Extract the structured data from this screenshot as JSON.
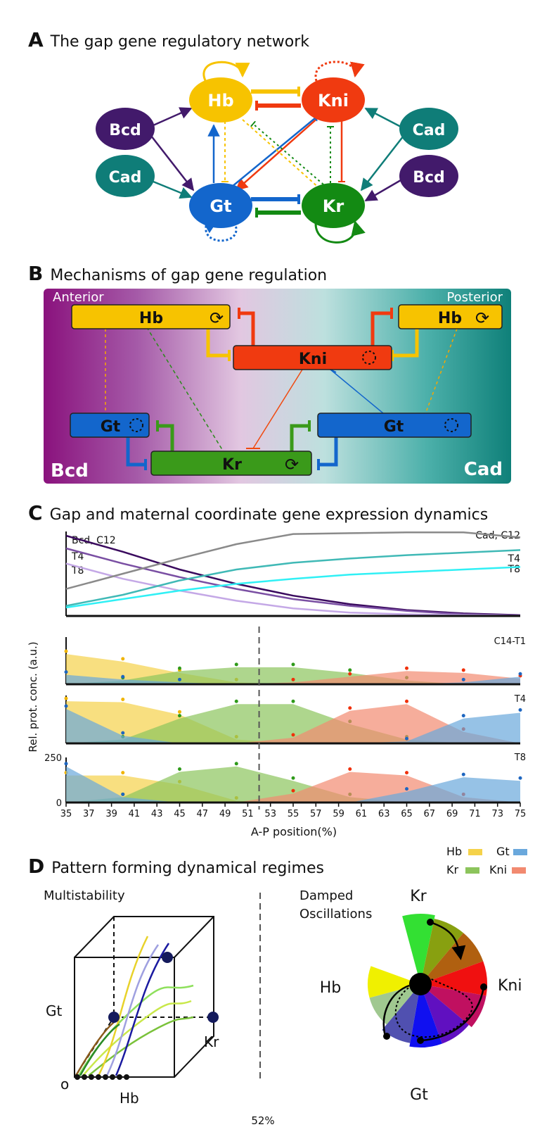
{
  "panelA": {
    "letter": "A",
    "title": "The gap gene regulatory network",
    "nodes": {
      "hb": "Hb",
      "kni": "Kni",
      "gt": "Gt",
      "kr": "Kr",
      "bcd_left": "Bcd",
      "cad_left": "Cad",
      "cad_right": "Cad",
      "bcd_right": "Bcd"
    }
  },
  "panelB": {
    "letter": "B",
    "title": "Mechanisms of gap gene regulation",
    "anterior": "Anterior",
    "posterior": "Posterior",
    "bcd": "Bcd",
    "cad": "Cad",
    "boxes": {
      "hb_left": "Hb",
      "hb_right": "Hb",
      "kni": "Kni",
      "gt_left": "Gt",
      "gt_right": "Gt",
      "kr": "Kr"
    }
  },
  "panelC": {
    "letter": "C",
    "title": "Gap and maternal coordinate gene expression dynamics",
    "ylabel": "Rel. prot. conc. (a.u.)",
    "xlabel": "A-P position(%)",
    "top_labels": {
      "bcd": "Bcd, C12",
      "t4_left": "T4",
      "t8_left": "T8",
      "cad": "Cad, C12",
      "t4_right": "T4",
      "t8_right": "T8"
    },
    "row_labels": [
      "C14-T1",
      "T4",
      "T8"
    ],
    "ytick_top": "250",
    "ytick_zero": "0",
    "marker_label": "52%",
    "legend": {
      "hb": "Hb",
      "gt": "Gt",
      "kr": "Kr",
      "kni": "Kni"
    }
  },
  "chart_data": [
    {
      "type": "line",
      "x": [
        35,
        40,
        45,
        50,
        55,
        60,
        65,
        70,
        75
      ],
      "xlim": [
        35,
        75
      ],
      "series": [
        {
          "name": "Bcd, C12",
          "color": "#3a0a5e",
          "values": [
            0.95,
            0.76,
            0.55,
            0.38,
            0.24,
            0.14,
            0.07,
            0.03,
            0.01
          ]
        },
        {
          "name": "T4",
          "color": "#7a4fa3",
          "values": [
            0.8,
            0.62,
            0.46,
            0.32,
            0.2,
            0.12,
            0.06,
            0.02,
            0.01
          ]
        },
        {
          "name": "T8",
          "color": "#c4a8e6",
          "values": [
            0.62,
            0.44,
            0.3,
            0.18,
            0.09,
            0.04,
            0.02,
            0.01,
            0.0
          ]
        },
        {
          "name": "Cad, C12",
          "color": "#8a8a8a",
          "values": [
            0.32,
            0.5,
            0.68,
            0.85,
            0.97,
            0.98,
            0.99,
            0.99,
            0.93
          ]
        },
        {
          "name": "T4",
          "color": "#40b9b6",
          "values": [
            0.12,
            0.25,
            0.42,
            0.55,
            0.63,
            0.68,
            0.72,
            0.75,
            0.78
          ]
        },
        {
          "name": "T8",
          "color": "#30f0f5",
          "values": [
            0.1,
            0.2,
            0.3,
            0.38,
            0.44,
            0.49,
            0.52,
            0.55,
            0.58
          ]
        }
      ]
    },
    {
      "type": "area",
      "title": "C14-T1",
      "x": [
        35,
        40,
        45,
        50,
        55,
        60,
        65,
        70,
        75
      ],
      "ylim": [
        0,
        250
      ],
      "series": [
        {
          "name": "Hb",
          "color": "#f5d24a",
          "values": [
            160,
            120,
            60,
            10,
            0,
            0,
            0,
            0,
            0
          ]
        },
        {
          "name": "Kr",
          "color": "#8cc45c",
          "values": [
            0,
            20,
            70,
            90,
            90,
            60,
            20,
            0,
            0
          ]
        },
        {
          "name": "Kni",
          "color": "#f28a70",
          "values": [
            0,
            0,
            0,
            0,
            10,
            40,
            70,
            60,
            30
          ]
        },
        {
          "name": "Gt",
          "color": "#6aa8dc",
          "values": [
            50,
            25,
            10,
            0,
            0,
            0,
            0,
            10,
            40
          ]
        }
      ]
    },
    {
      "type": "area",
      "title": "T4",
      "x": [
        35,
        40,
        45,
        50,
        55,
        60,
        65,
        70,
        75
      ],
      "ylim": [
        0,
        250
      ],
      "series": [
        {
          "name": "Hb",
          "color": "#f5d24a",
          "values": [
            220,
            215,
            150,
            20,
            0,
            0,
            0,
            0,
            0
          ]
        },
        {
          "name": "Kr",
          "color": "#8cc45c",
          "values": [
            0,
            20,
            130,
            205,
            205,
            100,
            20,
            0,
            0
          ]
        },
        {
          "name": "Kni",
          "color": "#f28a70",
          "values": [
            0,
            0,
            0,
            0,
            30,
            170,
            205,
            60,
            0
          ]
        },
        {
          "name": "Gt",
          "color": "#6aa8dc",
          "values": [
            180,
            40,
            0,
            0,
            0,
            0,
            10,
            130,
            160
          ]
        }
      ]
    },
    {
      "type": "area",
      "title": "T8",
      "x": [
        35,
        40,
        45,
        50,
        55,
        60,
        65,
        70,
        75
      ],
      "ylim": [
        0,
        250
      ],
      "series": [
        {
          "name": "Hb",
          "color": "#f5d24a",
          "values": [
            150,
            150,
            100,
            10,
            0,
            0,
            0,
            0,
            0
          ]
        },
        {
          "name": "Kr",
          "color": "#8cc45c",
          "values": [
            0,
            30,
            170,
            200,
            120,
            30,
            0,
            0,
            0
          ]
        },
        {
          "name": "Kni",
          "color": "#f28a70",
          "values": [
            0,
            0,
            0,
            0,
            50,
            170,
            150,
            30,
            0
          ]
        },
        {
          "name": "Gt",
          "color": "#6aa8dc",
          "values": [
            200,
            30,
            0,
            0,
            0,
            0,
            60,
            140,
            120
          ]
        }
      ]
    }
  ],
  "xticks": [
    "35",
    "37",
    "39",
    "41",
    "43",
    "45",
    "47",
    "49",
    "51",
    "53",
    "55",
    "57",
    "59",
    "61",
    "63",
    "65",
    "67",
    "69",
    "71",
    "73",
    "75"
  ],
  "panelD": {
    "letter": "D",
    "title": "Pattern forming dynamical regimes",
    "left_title": "Multistability",
    "right_title_line1": "Damped",
    "right_title_line2": "Oscillations",
    "cube_labels": {
      "gt": "Gt",
      "kr": "Kr",
      "hb": "Hb",
      "origin": "o"
    },
    "wheel_labels": {
      "kr": "Kr",
      "kni": "Kni",
      "gt": "Gt",
      "hb": "Hb"
    }
  },
  "colors": {
    "hb": "#f7c300",
    "kni": "#f03a10",
    "gt": "#1366cc",
    "kr": "#138a13",
    "bcd": "#421a6b",
    "cad": "#0f7d78"
  }
}
